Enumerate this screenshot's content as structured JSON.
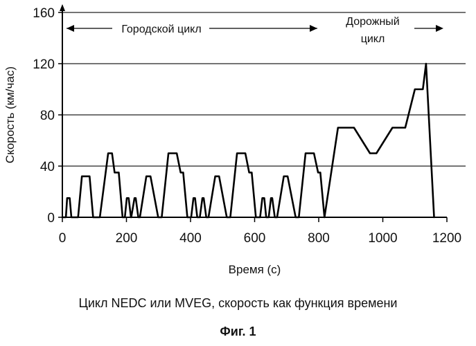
{
  "chart_data": {
    "type": "line",
    "title": "",
    "xlabel": "Время (с)",
    "ylabel": "Скорость (км/час)",
    "xlim": [
      0,
      1200
    ],
    "ylim": [
      0,
      160
    ],
    "xticks": [
      0,
      200,
      400,
      600,
      800,
      1000,
      1200
    ],
    "yticks": [
      0,
      40,
      80,
      120,
      160
    ],
    "grid": "horizontal",
    "legend": "none",
    "annotations": [
      {
        "text": "Городской цикл",
        "span": [
          0,
          800
        ]
      },
      {
        "text": "Дорожный цикл",
        "span": [
          800,
          1200
        ]
      }
    ],
    "series": [
      {
        "x": [
          0,
          11,
          15,
          23,
          28,
          49,
          61,
          85,
          96,
          117,
          143,
          155,
          163,
          176,
          188,
          195,
          201,
          207,
          214,
          215,
          225,
          229,
          237,
          242,
          262,
          275,
          299,
          310,
          331,
          357,
          369,
          377,
          390,
          402,
          409,
          414,
          421,
          429,
          437,
          441,
          449,
          456,
          477,
          489,
          513,
          524,
          545,
          571,
          583,
          591,
          604,
          617,
          624,
          630,
          636,
          644,
          651,
          655,
          663,
          670,
          691,
          703,
          728,
          738,
          759,
          785,
          798,
          805,
          818,
          860,
          910,
          960,
          980,
          1030,
          1070,
          1100,
          1125,
          1135,
          1160
        ],
        "y": [
          0,
          0,
          15,
          15,
          0,
          0,
          32,
          32,
          0,
          0,
          50,
          50,
          35,
          35,
          0,
          0,
          15,
          15,
          0,
          0,
          15,
          15,
          0,
          0,
          32,
          32,
          0,
          0,
          50,
          50,
          35,
          35,
          0,
          0,
          15,
          15,
          0,
          0,
          15,
          15,
          0,
          0,
          32,
          32,
          0,
          0,
          50,
          50,
          35,
          35,
          0,
          0,
          15,
          15,
          0,
          0,
          15,
          15,
          0,
          0,
          32,
          32,
          0,
          0,
          50,
          50,
          35,
          35,
          0,
          70,
          70,
          50,
          50,
          70,
          70,
          100,
          100,
          120,
          0
        ]
      }
    ]
  },
  "caption": "Цикл NEDC или MVEG, скорость как функция времени",
  "figure_label": "Фиг. 1"
}
